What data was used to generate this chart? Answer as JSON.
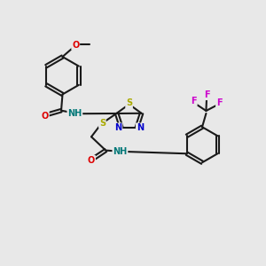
{
  "bg_color": "#e8e8e8",
  "bond_color": "#1a1a1a",
  "bond_width": 1.5,
  "dbo": 0.06,
  "atom_colors": {
    "C": "#1a1a1a",
    "N": "#0000cc",
    "O": "#dd0000",
    "S": "#aaaa00",
    "F": "#cc00cc",
    "H": "#007777"
  },
  "afs": 7.0
}
